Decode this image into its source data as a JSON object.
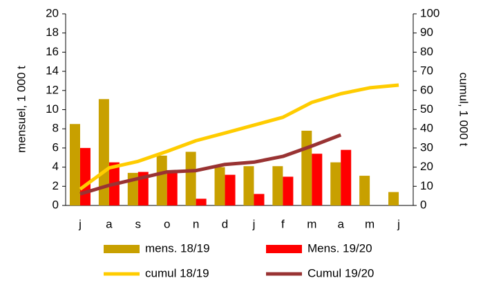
{
  "chart_data": {
    "type": "bar-line",
    "categories": [
      "j",
      "a",
      "s",
      "o",
      "n",
      "d",
      "j",
      "f",
      "m",
      "a",
      "m",
      "j"
    ],
    "ylabel": "mensuel, 1 000 t",
    "y2label": "cumul, 1 000 t",
    "ylim": [
      0,
      20
    ],
    "yticks": [
      0,
      2,
      4,
      6,
      8,
      10,
      12,
      14,
      16,
      18,
      20
    ],
    "y2lim": [
      0,
      100
    ],
    "y2ticks": [
      0,
      10,
      20,
      30,
      40,
      50,
      60,
      70,
      80,
      90,
      100
    ],
    "grid": false,
    "series": [
      {
        "name": "mens. 18/19",
        "type": "bar",
        "color": "#c8a000",
        "values": [
          8.5,
          11.1,
          3.4,
          5.2,
          5.6,
          4.0,
          4.1,
          4.1,
          7.8,
          4.5,
          3.1,
          1.4
        ]
      },
      {
        "name": "Mens. 19/20",
        "type": "bar",
        "color": "#ff0000",
        "values": [
          6.0,
          4.5,
          3.5,
          3.5,
          0.7,
          3.2,
          1.2,
          3.0,
          5.4,
          5.8,
          null,
          null
        ]
      },
      {
        "name": "cumul 18/19",
        "type": "line",
        "axis": "y2",
        "color": "#ffcc00",
        "values": [
          8.5,
          19.6,
          23,
          28.2,
          33.8,
          37.8,
          41.9,
          46,
          53.8,
          58.3,
          61.4,
          62.8
        ]
      },
      {
        "name": "Cumul 19/20",
        "type": "line",
        "axis": "y2",
        "color": "#993333",
        "values": [
          6,
          10.5,
          14,
          17.5,
          18.2,
          21.4,
          22.6,
          25.6,
          31,
          36.8,
          null,
          null
        ]
      }
    ]
  }
}
